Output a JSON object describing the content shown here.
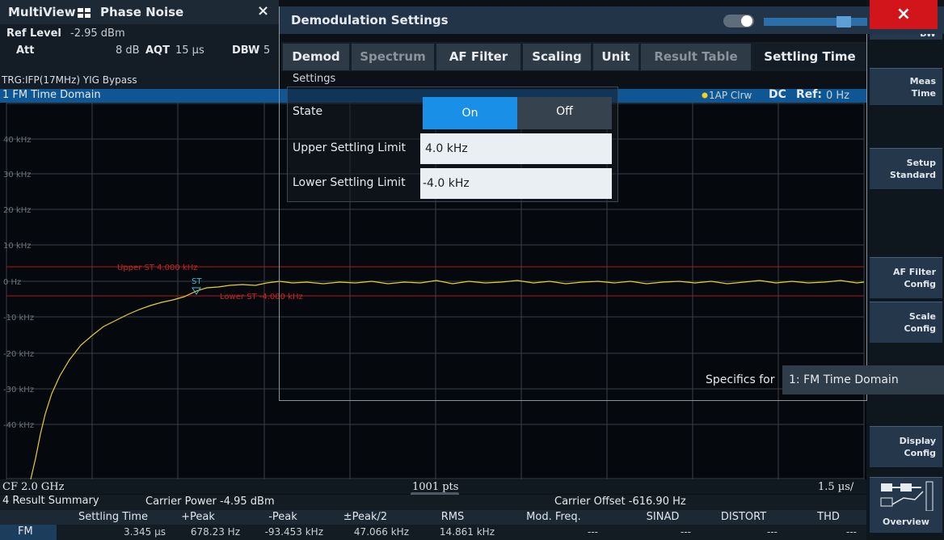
{
  "tabs": {
    "multiview": "MultiView",
    "channel": "Phase Noise",
    "close": "×"
  },
  "info": {
    "ref_level_label": "Ref Level",
    "ref_level": "-2.95 dBm",
    "att_label": "Att",
    "att": "8 dB",
    "aqt_label": "AQT",
    "aqt": "15 µs",
    "dbw_label": "DBW",
    "dbw": "5",
    "trigger": "TRG:IFP(17MHz) YIG Bypass"
  },
  "diagram": {
    "title": "1 FM Time Domain",
    "trace_info": "1AP Clrw",
    "coupling": "DC",
    "ref_label": "Ref:",
    "ref": "0 Hz",
    "y_labels": [
      "40 kHz",
      "30 kHz",
      "20 kHz",
      "10 kHz",
      "0 Hz",
      "-10 kHz",
      "-20 kHz",
      "-30 kHz",
      "-40 kHz"
    ],
    "upper_limit": "Upper ST 4.000 kHz",
    "lower_limit": "Lower ST -4.000 kHz",
    "marker": "ST",
    "cf": "CF 2.0 GHz",
    "points": "1001 pts",
    "scale": "1.5 µs/"
  },
  "summary": {
    "title": "4 Result Summary",
    "carrier_power": "Carrier Power -4.95 dBm",
    "carrier_offset": "Carrier Offset -616.90 Hz",
    "headers": [
      "Settling Time",
      "+Peak",
      "-Peak",
      "±Peak/2",
      "RMS",
      "Mod. Freq.",
      "SINAD",
      "DISTORT",
      "THD"
    ],
    "rows": [
      [
        "FM",
        "3.345 µs",
        "678.23 Hz",
        "-93.453 kHz",
        "47.066 kHz",
        "14.861 kHz",
        "---",
        "---",
        "---",
        "---"
      ]
    ]
  },
  "softkeys": [
    "BW",
    "Meas Time",
    "Setup Standard",
    "AF Filter Config",
    "Scale Config",
    "Display Config",
    "Overview"
  ],
  "dialog": {
    "title": "Demodulation Settings",
    "close": "×",
    "tabs": [
      "Demod",
      "Spectrum",
      "AF Filter",
      "Scaling",
      "Unit",
      "Result Table",
      "Settling Time"
    ],
    "group": "Settings",
    "state_label": "State",
    "on": "On",
    "off": "Off",
    "upper_label": "Upper Settling Limit",
    "upper": "4.0 kHz",
    "lower_label": "Lower Settling Limit",
    "lower": "-4.0 kHz",
    "specifics_label": "Specifics for",
    "specifics": "1: FM Time Domain"
  }
}
